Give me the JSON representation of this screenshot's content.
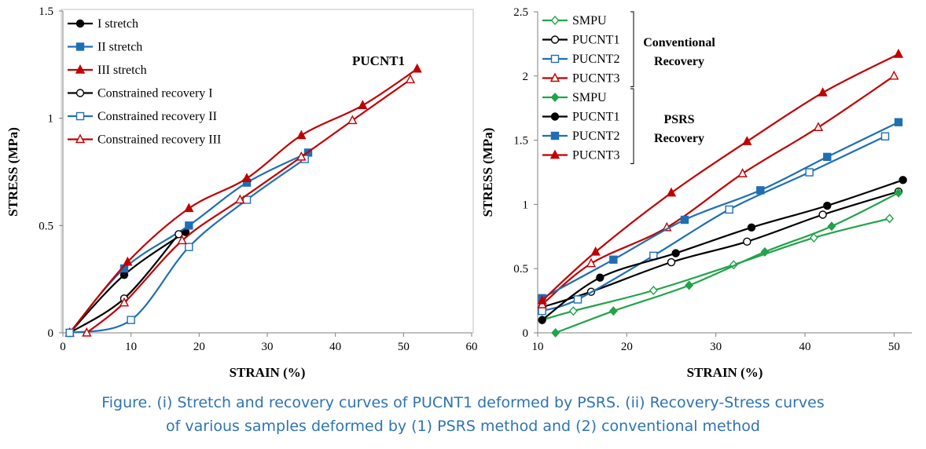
{
  "caption": {
    "line1": "Figure. (i) Stretch and recovery curves of PUCNT1 deformed by PSRS. (ii) Recovery-Stress curves",
    "line2": "of various samples deformed by (1) PSRS method and (2) conventional method"
  },
  "colors": {
    "black": "#000000",
    "blue": "#1f6fb4",
    "red": "#c00000",
    "green": "#22a34a",
    "caption": "#2e74b5"
  },
  "chart_data": [
    {
      "type": "line",
      "xlabel": "STRAIN (%)",
      "ylabel": "STRESS (MPa)",
      "xlim": [
        0,
        60
      ],
      "ylim": [
        0,
        1.5
      ],
      "xticks": [
        0,
        10,
        20,
        30,
        40,
        50,
        60
      ],
      "yticks": [
        0,
        0.5,
        1,
        1.5
      ],
      "xtick_labels": [
        "0",
        "10",
        "20",
        "30",
        "40",
        "50",
        "60"
      ],
      "ytick_labels": [
        "0",
        "0.5",
        "1",
        "1.5"
      ],
      "annotation": "PUCNT1",
      "legend_position": "top-left",
      "grid": false,
      "series": [
        {
          "name": "I stretch",
          "color": "#000000",
          "marker": "circle-filled",
          "x": [
            1,
            9,
            18
          ],
          "y": [
            0,
            0.27,
            0.47
          ]
        },
        {
          "name": "II stretch",
          "color": "#1f6fb4",
          "marker": "square-filled",
          "x": [
            1,
            9,
            18.5,
            27,
            36
          ],
          "y": [
            0,
            0.3,
            0.5,
            0.7,
            0.84
          ]
        },
        {
          "name": "III stretch",
          "color": "#c00000",
          "marker": "triangle-filled",
          "x": [
            1,
            9.5,
            18.5,
            27,
            35,
            44,
            52
          ],
          "y": [
            0,
            0.33,
            0.58,
            0.72,
            0.92,
            1.06,
            1.23
          ]
        },
        {
          "name": "Constrained recovery I",
          "color": "#000000",
          "marker": "circle-open",
          "x": [
            1,
            9,
            17
          ],
          "y": [
            0,
            0.16,
            0.46
          ]
        },
        {
          "name": "Constrained recovery II",
          "color": "#1f6fb4",
          "marker": "square-open",
          "x": [
            1,
            10,
            18.5,
            27,
            35.5
          ],
          "y": [
            0,
            0.06,
            0.4,
            0.62,
            0.81
          ]
        },
        {
          "name": "Constrained recovery III",
          "color": "#c00000",
          "marker": "triangle-open",
          "x": [
            3.5,
            9,
            17.5,
            26,
            35,
            42.5,
            51
          ],
          "y": [
            0,
            0.14,
            0.43,
            0.62,
            0.82,
            0.99,
            1.18
          ]
        }
      ]
    },
    {
      "type": "line",
      "xlabel": "STRAIN (%)",
      "ylabel": "STRESS (MPa)",
      "xlim": [
        10,
        52
      ],
      "ylim": [
        0,
        2.5
      ],
      "xticks": [
        10,
        20,
        30,
        40,
        50
      ],
      "yticks": [
        0,
        0.5,
        1,
        1.5,
        2,
        2.5
      ],
      "xtick_labels": [
        "10",
        "20",
        "30",
        "40",
        "50"
      ],
      "ytick_labels": [
        "0",
        "0.5",
        "1",
        "1.5",
        "2",
        "2.5"
      ],
      "legend_position": "top-left",
      "legend_groups": [
        {
          "label_line1": "Conventional",
          "label_line2": "Recovery"
        },
        {
          "label_line1": "PSRS",
          "label_line2": "Recovery"
        }
      ],
      "grid": false,
      "series": [
        {
          "name": "SMPU",
          "group": 0,
          "color": "#22a34a",
          "marker": "diamond-open",
          "x": [
            10.5,
            14,
            23,
            32,
            41,
            49.5
          ],
          "y": [
            0.1,
            0.17,
            0.33,
            0.53,
            0.74,
            0.89
          ]
        },
        {
          "name": "PUCNT1",
          "group": 0,
          "color": "#000000",
          "marker": "circle-open",
          "x": [
            10.5,
            16,
            25,
            33.5,
            42,
            50.5
          ],
          "y": [
            0.2,
            0.32,
            0.55,
            0.71,
            0.92,
            1.1
          ]
        },
        {
          "name": "PUCNT2",
          "group": 0,
          "color": "#1f6fb4",
          "marker": "square-open",
          "x": [
            10.5,
            14.5,
            23,
            31.5,
            40.5,
            49
          ],
          "y": [
            0.17,
            0.26,
            0.6,
            0.96,
            1.25,
            1.53
          ]
        },
        {
          "name": "PUCNT3",
          "group": 0,
          "color": "#c00000",
          "marker": "triangle-open",
          "x": [
            10.5,
            16,
            24.5,
            33,
            41.5,
            50
          ],
          "y": [
            0.22,
            0.54,
            0.82,
            1.24,
            1.6,
            2.0
          ]
        },
        {
          "name": "SMPU",
          "group": 1,
          "color": "#22a34a",
          "marker": "diamond-filled",
          "x": [
            12,
            18.5,
            27,
            35.5,
            43,
            50.5
          ],
          "y": [
            0.0,
            0.17,
            0.37,
            0.63,
            0.83,
            1.09
          ]
        },
        {
          "name": "PUCNT1",
          "group": 1,
          "color": "#000000",
          "marker": "circle-filled",
          "x": [
            10.5,
            17,
            25.5,
            34,
            42.5,
            51
          ],
          "y": [
            0.1,
            0.43,
            0.62,
            0.82,
            0.99,
            1.19
          ]
        },
        {
          "name": "PUCNT2",
          "group": 1,
          "color": "#1f6fb4",
          "marker": "square-filled",
          "x": [
            10.5,
            18.5,
            26.5,
            35,
            42.5,
            50.5
          ],
          "y": [
            0.27,
            0.57,
            0.88,
            1.11,
            1.37,
            1.64
          ]
        },
        {
          "name": "PUCNT3",
          "group": 1,
          "color": "#c00000",
          "marker": "triangle-filled",
          "x": [
            10.5,
            16.5,
            25,
            33.5,
            42,
            50.5
          ],
          "y": [
            0.25,
            0.63,
            1.09,
            1.49,
            1.87,
            2.17
          ]
        }
      ]
    }
  ]
}
